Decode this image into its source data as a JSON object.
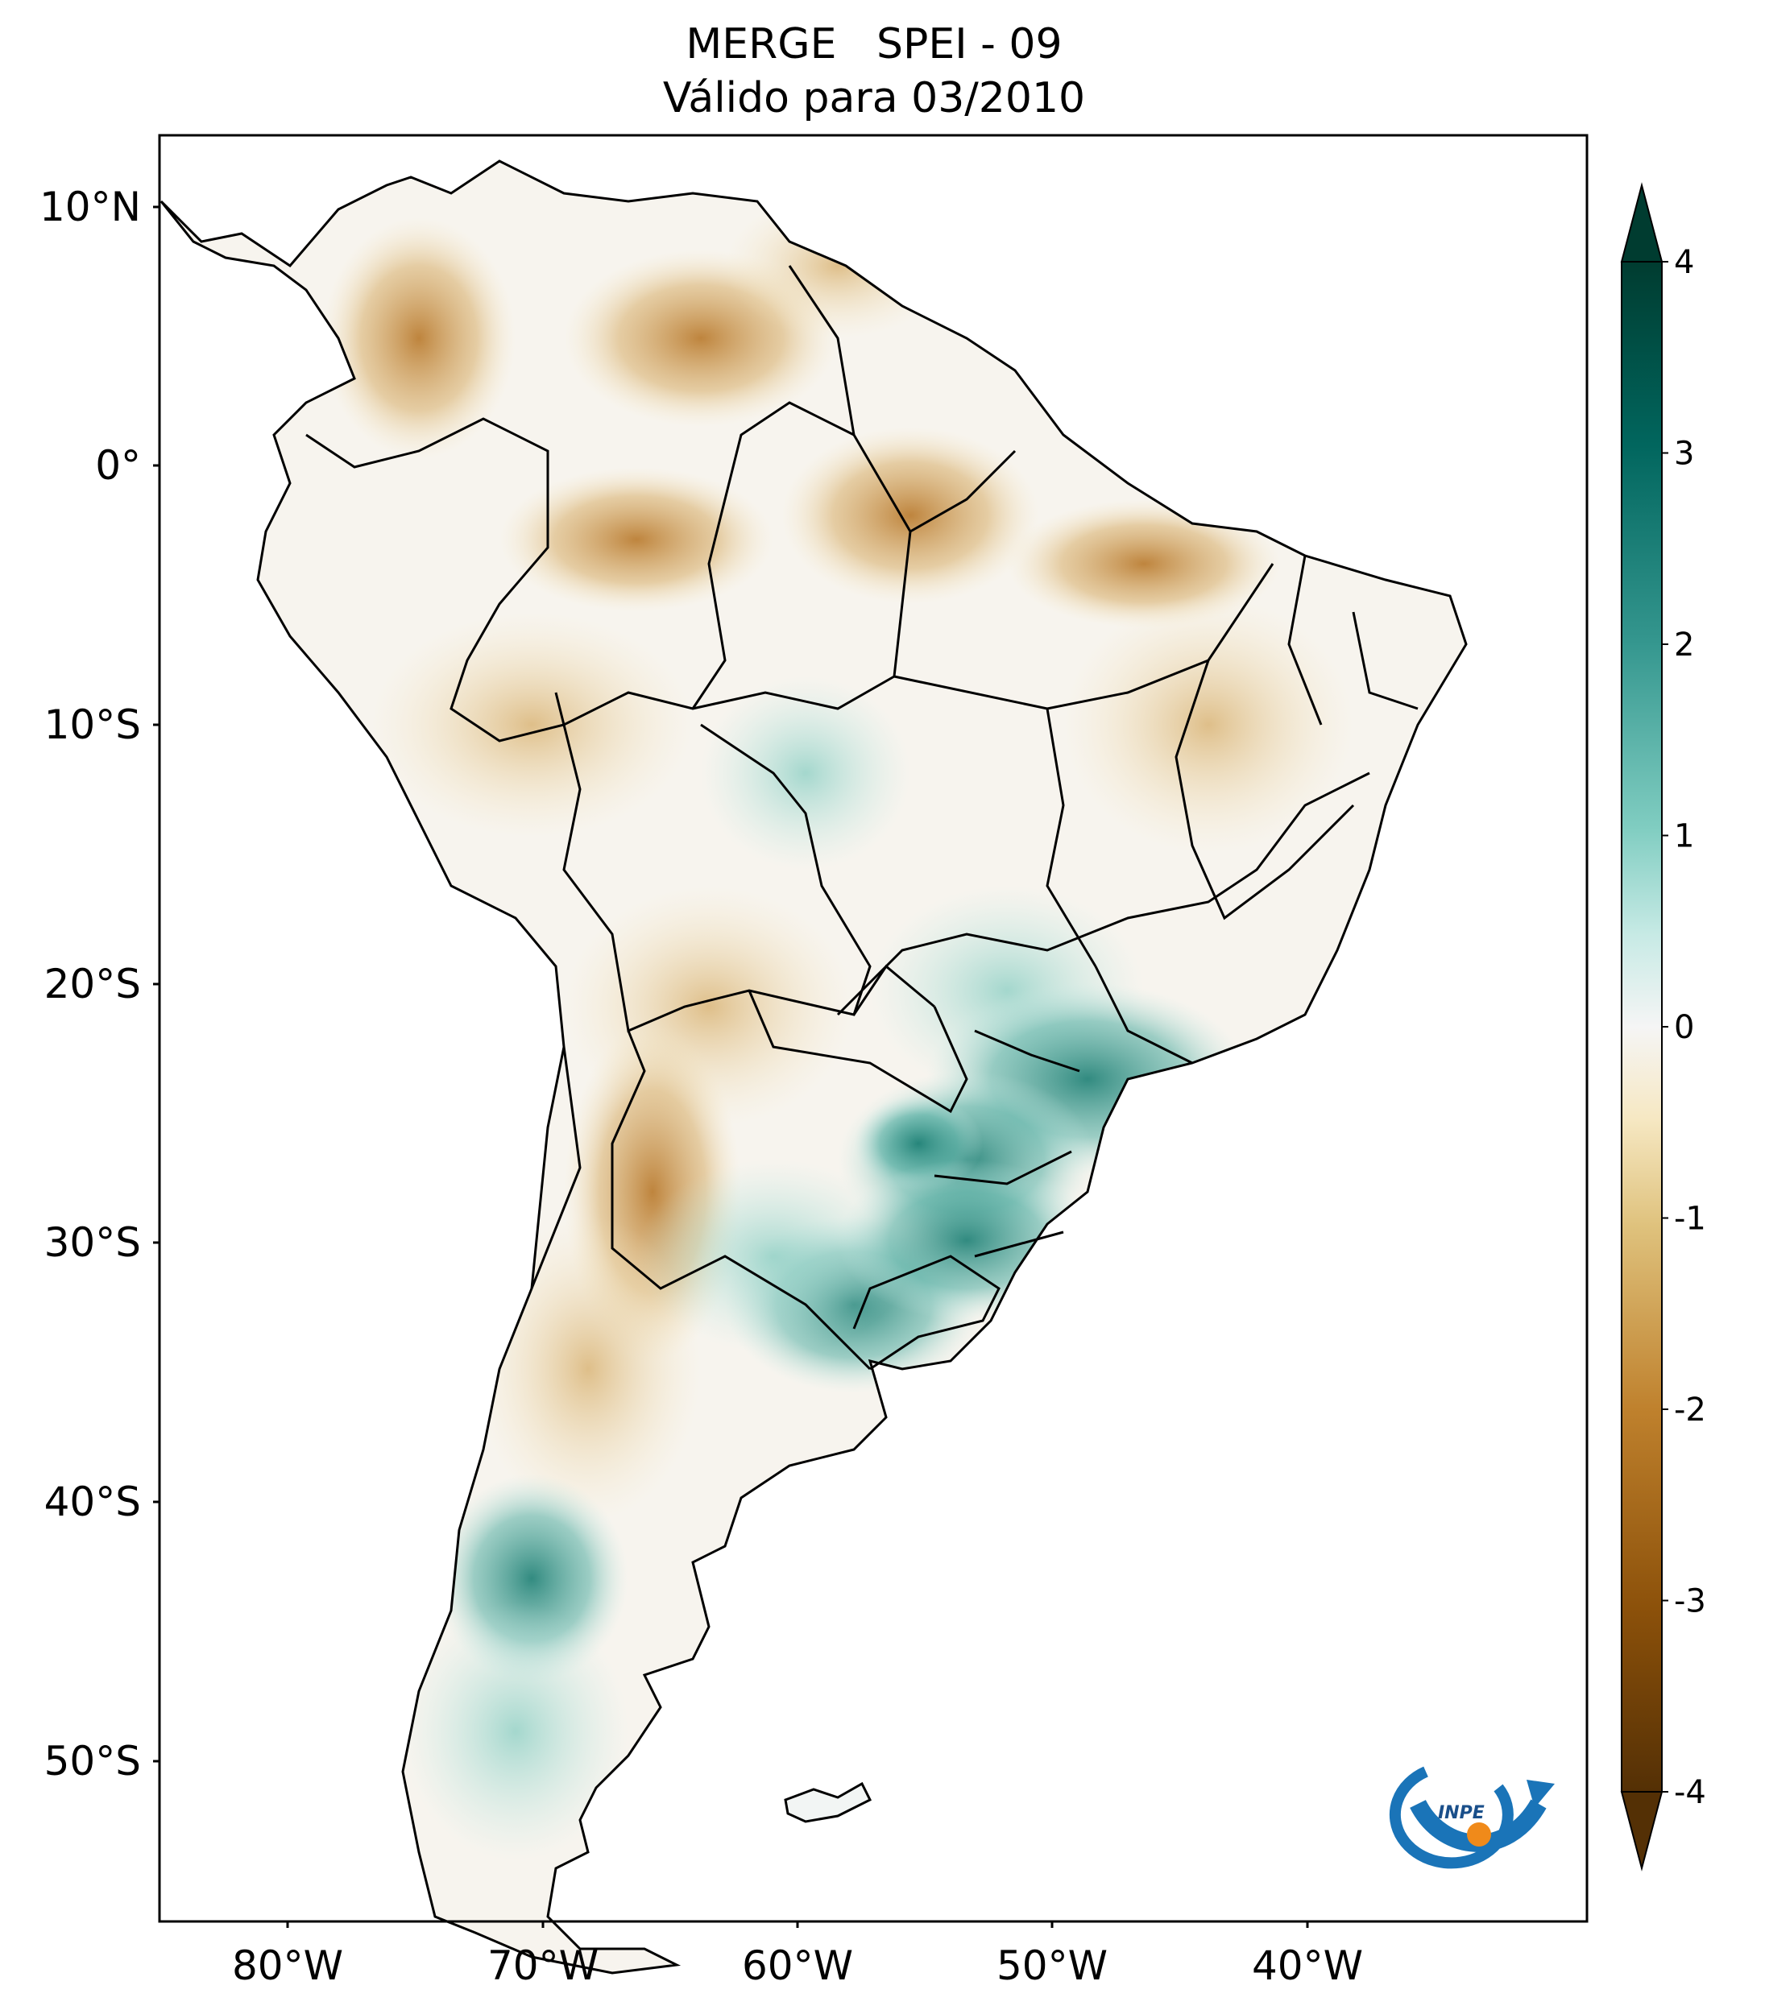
{
  "title": {
    "line1": "MERGE   SPEI - 09",
    "line2": "Válido para 03/2010"
  },
  "map": {
    "region": "South America",
    "lon_range": [
      -85,
      -29
    ],
    "lat_range": [
      -56,
      13
    ],
    "lat_ticks": [
      "10°N",
      "0°",
      "10°S",
      "20°S",
      "30°S",
      "40°S",
      "50°S"
    ],
    "lon_ticks": [
      "80°W",
      "70°W",
      "60°W",
      "50°W",
      "40°W"
    ],
    "palette": "BrBG (brown = dry, teal = wet)"
  },
  "colorbar": {
    "min": -4,
    "max": 4,
    "tick_labels": [
      "4",
      "3",
      "2",
      "1",
      "0",
      "-1",
      "-2",
      "-3",
      "-4"
    ],
    "extend": "both"
  },
  "logo": {
    "name": "inpe-logo"
  }
}
